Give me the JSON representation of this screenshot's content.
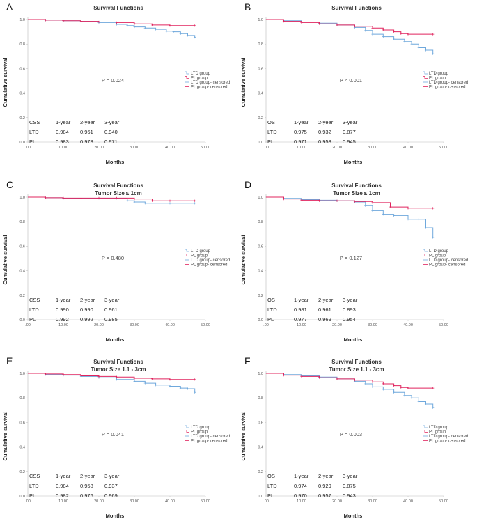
{
  "legend_items": [
    {
      "label": "LTD group",
      "color": "#6fa8dc",
      "censor": false
    },
    {
      "label": "PL group",
      "color": "#e0245e",
      "censor": false
    },
    {
      "label": "LTD group- censored",
      "color": "#6fa8dc",
      "censor": true
    },
    {
      "label": "PL group- censored",
      "color": "#e0245e",
      "censor": true
    }
  ],
  "chart_data": [
    {
      "letter": "A",
      "type": "line",
      "title": "Survival Functions",
      "subtitle": "",
      "xlabel": "Months",
      "ylabel": "Cumulative survival",
      "xlim": [
        0,
        50
      ],
      "ylim": [
        0,
        1.0
      ],
      "xticks": [
        ".00",
        "10.00",
        "20.00",
        "30.00",
        "40.00",
        "50.00"
      ],
      "yticks": [
        "0.0",
        "0.2",
        "0.4",
        "0.6",
        "0.8",
        "1.0"
      ],
      "p_text": "P = 0.024",
      "series": [
        {
          "name": "LTD group",
          "color": "#6fa8dc",
          "x": [
            0,
            5,
            10,
            15,
            20,
            25,
            28,
            30,
            33,
            36,
            39,
            41,
            43,
            45,
            47
          ],
          "y": [
            1.0,
            0.995,
            0.99,
            0.985,
            0.975,
            0.96,
            0.95,
            0.94,
            0.93,
            0.92,
            0.905,
            0.9,
            0.885,
            0.87,
            0.855
          ]
        },
        {
          "name": "PL group",
          "color": "#e0245e",
          "x": [
            0,
            5,
            10,
            15,
            20,
            25,
            30,
            35,
            40,
            47
          ],
          "y": [
            1.0,
            0.995,
            0.99,
            0.985,
            0.98,
            0.975,
            0.965,
            0.955,
            0.95,
            0.95
          ]
        }
      ],
      "table": {
        "header": [
          "CSS",
          "1-year",
          "2-year",
          "3-year"
        ],
        "rows": [
          [
            "LTD",
            "0.984",
            "0.961",
            "0.940"
          ],
          [
            "PL",
            "0.983",
            "0.978",
            "0.971"
          ]
        ]
      }
    },
    {
      "letter": "B",
      "type": "line",
      "title": "Survival Functions",
      "subtitle": "",
      "xlabel": "Months",
      "ylabel": "Cumulative survival",
      "xlim": [
        0,
        50
      ],
      "ylim": [
        0,
        1.0
      ],
      "xticks": [
        ".00",
        "10.00",
        "20.00",
        "30.00",
        "40.00",
        "50.00"
      ],
      "yticks": [
        "0.0",
        "0.2",
        "0.4",
        "0.6",
        "0.8",
        "1.0"
      ],
      "p_text": "P < 0.001",
      "series": [
        {
          "name": "LTD group",
          "color": "#6fa8dc",
          "x": [
            0,
            5,
            10,
            15,
            20,
            25,
            28,
            30,
            33,
            36,
            39,
            41,
            43,
            45,
            47
          ],
          "y": [
            1.0,
            0.99,
            0.98,
            0.97,
            0.955,
            0.935,
            0.91,
            0.88,
            0.86,
            0.84,
            0.82,
            0.8,
            0.77,
            0.75,
            0.72
          ]
        },
        {
          "name": "PL group",
          "color": "#e0245e",
          "x": [
            0,
            5,
            10,
            15,
            20,
            25,
            30,
            33,
            36,
            38,
            40,
            47
          ],
          "y": [
            1.0,
            0.985,
            0.975,
            0.965,
            0.955,
            0.945,
            0.93,
            0.915,
            0.9,
            0.885,
            0.88,
            0.88
          ]
        }
      ],
      "table": {
        "header": [
          "OS",
          "1-year",
          "2-year",
          "3-year"
        ],
        "rows": [
          [
            "LTD",
            "0.975",
            "0.932",
            "0.877"
          ],
          [
            "PL",
            "0.971",
            "0.958",
            "0.945"
          ]
        ]
      }
    },
    {
      "letter": "C",
      "type": "line",
      "title": "Survival Functions",
      "subtitle": "Tumor Size ≤ 1cm",
      "xlabel": "Months",
      "ylabel": "Cumulative survival",
      "xlim": [
        0,
        50
      ],
      "ylim": [
        0,
        1.0
      ],
      "xticks": [
        ".00",
        "10.00",
        "20.00",
        "30.00",
        "40.00",
        "50.00"
      ],
      "yticks": [
        "0.0",
        "0.2",
        "0.4",
        "0.6",
        "0.8",
        "1.0"
      ],
      "p_text": "P = 0.480",
      "series": [
        {
          "name": "LTD group",
          "color": "#6fa8dc",
          "x": [
            0,
            5,
            10,
            15,
            20,
            25,
            28,
            30,
            33,
            40,
            47
          ],
          "y": [
            1.0,
            0.995,
            0.99,
            0.99,
            0.99,
            0.99,
            0.97,
            0.96,
            0.95,
            0.95,
            0.95
          ]
        },
        {
          "name": "PL group",
          "color": "#e0245e",
          "x": [
            0,
            5,
            10,
            15,
            20,
            25,
            30,
            35,
            40,
            47
          ],
          "y": [
            1.0,
            0.995,
            0.992,
            0.992,
            0.992,
            0.992,
            0.985,
            0.97,
            0.97,
            0.97
          ]
        }
      ],
      "table": {
        "header": [
          "CSS",
          "1-year",
          "2-year",
          "3-year"
        ],
        "rows": [
          [
            "LTD",
            "0.990",
            "0.990",
            "0.961"
          ],
          [
            "PL",
            "0.992",
            "0.992",
            "0.985"
          ]
        ]
      }
    },
    {
      "letter": "D",
      "type": "line",
      "title": "Survival Functions",
      "subtitle": "Tumor Size ≤ 1cm",
      "xlabel": "Months",
      "ylabel": "Cumulative survival",
      "xlim": [
        0,
        50
      ],
      "ylim": [
        0,
        1.0
      ],
      "xticks": [
        ".00",
        "10.00",
        "20.00",
        "30.00",
        "40.00",
        "50.00"
      ],
      "yticks": [
        "0.0",
        "0.2",
        "0.4",
        "0.6",
        "0.8",
        "1.0"
      ],
      "p_text": "P = 0.127",
      "series": [
        {
          "name": "LTD group",
          "color": "#6fa8dc",
          "x": [
            0,
            5,
            10,
            15,
            20,
            25,
            28,
            30,
            33,
            36,
            40,
            43,
            45,
            47
          ],
          "y": [
            1.0,
            0.99,
            0.98,
            0.975,
            0.97,
            0.96,
            0.93,
            0.89,
            0.86,
            0.85,
            0.82,
            0.82,
            0.75,
            0.67
          ]
        },
        {
          "name": "PL group",
          "color": "#e0245e",
          "x": [
            0,
            5,
            10,
            15,
            20,
            25,
            30,
            35,
            40,
            47
          ],
          "y": [
            1.0,
            0.985,
            0.975,
            0.97,
            0.97,
            0.965,
            0.955,
            0.92,
            0.91,
            0.91
          ]
        }
      ],
      "table": {
        "header": [
          "OS",
          "1-year",
          "2-year",
          "3-year"
        ],
        "rows": [
          [
            "LTD",
            "0.981",
            "0.961",
            "0.893"
          ],
          [
            "PL",
            "0.977",
            "0.969",
            "0.954"
          ]
        ]
      }
    },
    {
      "letter": "E",
      "type": "line",
      "title": "Survival Functions",
      "subtitle": "Tumor Size 1.1 - 3cm",
      "xlabel": "Months",
      "ylabel": "Cumulative survival",
      "xlim": [
        0,
        50
      ],
      "ylim": [
        0,
        1.0
      ],
      "xticks": [
        ".00",
        "10.00",
        "20.00",
        "30.00",
        "40.00",
        "50.00"
      ],
      "yticks": [
        "0.0",
        "0.2",
        "0.4",
        "0.6",
        "0.8",
        "1.0"
      ],
      "p_text": "P = 0.041",
      "series": [
        {
          "name": "LTD group",
          "color": "#6fa8dc",
          "x": [
            0,
            5,
            10,
            15,
            20,
            25,
            30,
            33,
            36,
            40,
            43,
            45,
            47
          ],
          "y": [
            1.0,
            0.99,
            0.985,
            0.975,
            0.965,
            0.95,
            0.935,
            0.92,
            0.905,
            0.895,
            0.88,
            0.875,
            0.845
          ]
        },
        {
          "name": "PL group",
          "color": "#e0245e",
          "x": [
            0,
            5,
            10,
            15,
            20,
            25,
            30,
            35,
            40,
            47
          ],
          "y": [
            1.0,
            0.995,
            0.99,
            0.98,
            0.975,
            0.97,
            0.96,
            0.955,
            0.95,
            0.95
          ]
        }
      ],
      "table": {
        "header": [
          "CSS",
          "1-year",
          "2-year",
          "3-year"
        ],
        "rows": [
          [
            "LTD",
            "0.984",
            "0.958",
            "0.937"
          ],
          [
            "PL",
            "0.982",
            "0.976",
            "0.969"
          ]
        ]
      }
    },
    {
      "letter": "F",
      "type": "line",
      "title": "Survival Functions",
      "subtitle": "Tumor Size 1.1 - 3cm",
      "xlabel": "Months",
      "ylabel": "Cumulative survival",
      "xlim": [
        0,
        50
      ],
      "ylim": [
        0,
        1.0
      ],
      "xticks": [
        ".00",
        "10.00",
        "20.00",
        "30.00",
        "40.00",
        "50.00"
      ],
      "yticks": [
        "0.0",
        "0.2",
        "0.4",
        "0.6",
        "0.8",
        "1.0"
      ],
      "p_text": "P = 0.003",
      "series": [
        {
          "name": "LTD group",
          "color": "#6fa8dc",
          "x": [
            0,
            5,
            10,
            15,
            20,
            25,
            28,
            30,
            33,
            36,
            39,
            41,
            43,
            45,
            47
          ],
          "y": [
            1.0,
            0.99,
            0.98,
            0.97,
            0.955,
            0.935,
            0.915,
            0.89,
            0.87,
            0.845,
            0.82,
            0.8,
            0.77,
            0.75,
            0.72
          ]
        },
        {
          "name": "PL group",
          "color": "#e0245e",
          "x": [
            0,
            5,
            10,
            15,
            20,
            25,
            30,
            33,
            36,
            38,
            40,
            47
          ],
          "y": [
            1.0,
            0.985,
            0.975,
            0.965,
            0.955,
            0.945,
            0.93,
            0.915,
            0.9,
            0.885,
            0.88,
            0.88
          ]
        }
      ],
      "table": {
        "header": [
          "OS",
          "1-year",
          "2-year",
          "3-year"
        ],
        "rows": [
          [
            "LTD",
            "0.974",
            "0.929",
            "0.875"
          ],
          [
            "PL",
            "0.970",
            "0.957",
            "0.943"
          ]
        ]
      }
    }
  ]
}
